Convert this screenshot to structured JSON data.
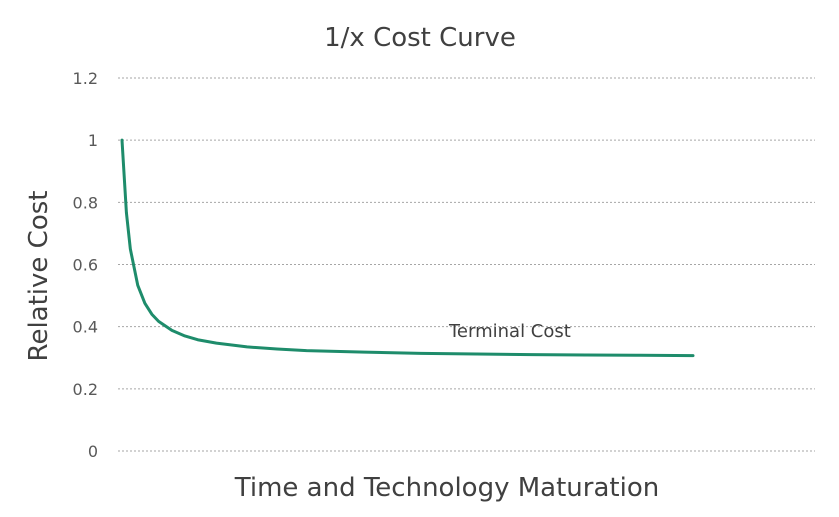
{
  "chart_data": {
    "type": "line",
    "title": "1/x Cost Curve",
    "xlabel": "Time and Technology Maturation",
    "ylabel": "Relative Cost",
    "ylim": [
      0,
      1.2
    ],
    "y_ticks": [
      "0",
      "0.2",
      "0.4",
      "0.6",
      "0.8",
      "1",
      "1.2"
    ],
    "grid": true,
    "x_ticks_shown": false,
    "series": [
      {
        "color": "#1e8c6b",
        "x": [
          1,
          1.5,
          2,
          3,
          4,
          5,
          6,
          8,
          10,
          12,
          15,
          20,
          25,
          30,
          40,
          50,
          60,
          70,
          80,
          90,
          100
        ],
        "values": [
          1.0,
          0.767,
          0.65,
          0.533,
          0.475,
          0.44,
          0.417,
          0.388,
          0.37,
          0.358,
          0.347,
          0.335,
          0.328,
          0.323,
          0.318,
          0.314,
          0.312,
          0.31,
          0.309,
          0.308,
          0.307
        ]
      }
    ],
    "annotations": [
      {
        "text": "Terminal Cost"
      }
    ]
  }
}
